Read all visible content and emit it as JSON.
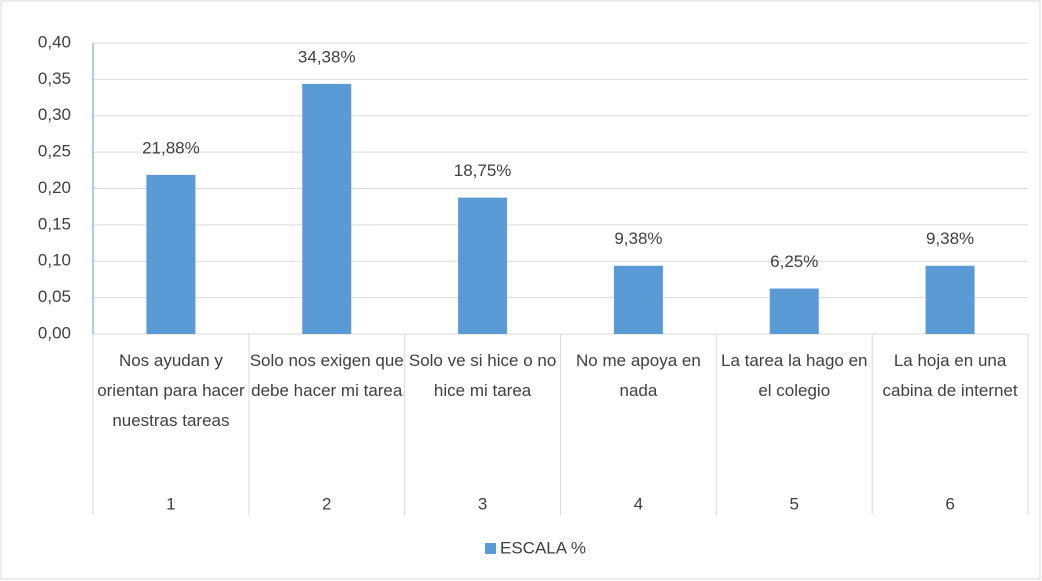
{
  "chart_data": {
    "type": "bar",
    "categories": [
      "Nos ayudan y orientan para hacer nuestras tareas",
      "Solo nos exigen que debe hacer mi tarea",
      "Solo ve si hice o no hice mi tarea",
      "No me apoya en nada",
      "La tarea la hago en el colegio",
      "La hoja en una cabina de internet"
    ],
    "category_numbers": [
      "1",
      "2",
      "3",
      "4",
      "5",
      "6"
    ],
    "series": [
      {
        "name": "ESCALA %",
        "color": "#5b9bd5",
        "values": [
          0.2188,
          0.3438,
          0.1875,
          0.0938,
          0.0625,
          0.0938
        ],
        "value_labels": [
          "21,88%",
          "34,38%",
          "18,75%",
          "9,38%",
          "6,25%",
          "9,38%"
        ]
      }
    ],
    "ylim": [
      0,
      0.4
    ],
    "yticks": [
      {
        "value": 0,
        "label": "0,00"
      },
      {
        "value": 0.05,
        "label": "0,05"
      },
      {
        "value": 0.1,
        "label": "0,10"
      },
      {
        "value": 0.15,
        "label": "0,15"
      },
      {
        "value": 0.2,
        "label": "0,20"
      },
      {
        "value": 0.25,
        "label": "0,25"
      },
      {
        "value": 0.3,
        "label": "0,30"
      },
      {
        "value": 0.35,
        "label": "0,35"
      },
      {
        "value": 0.4,
        "label": "0,40"
      }
    ],
    "grid": true
  }
}
